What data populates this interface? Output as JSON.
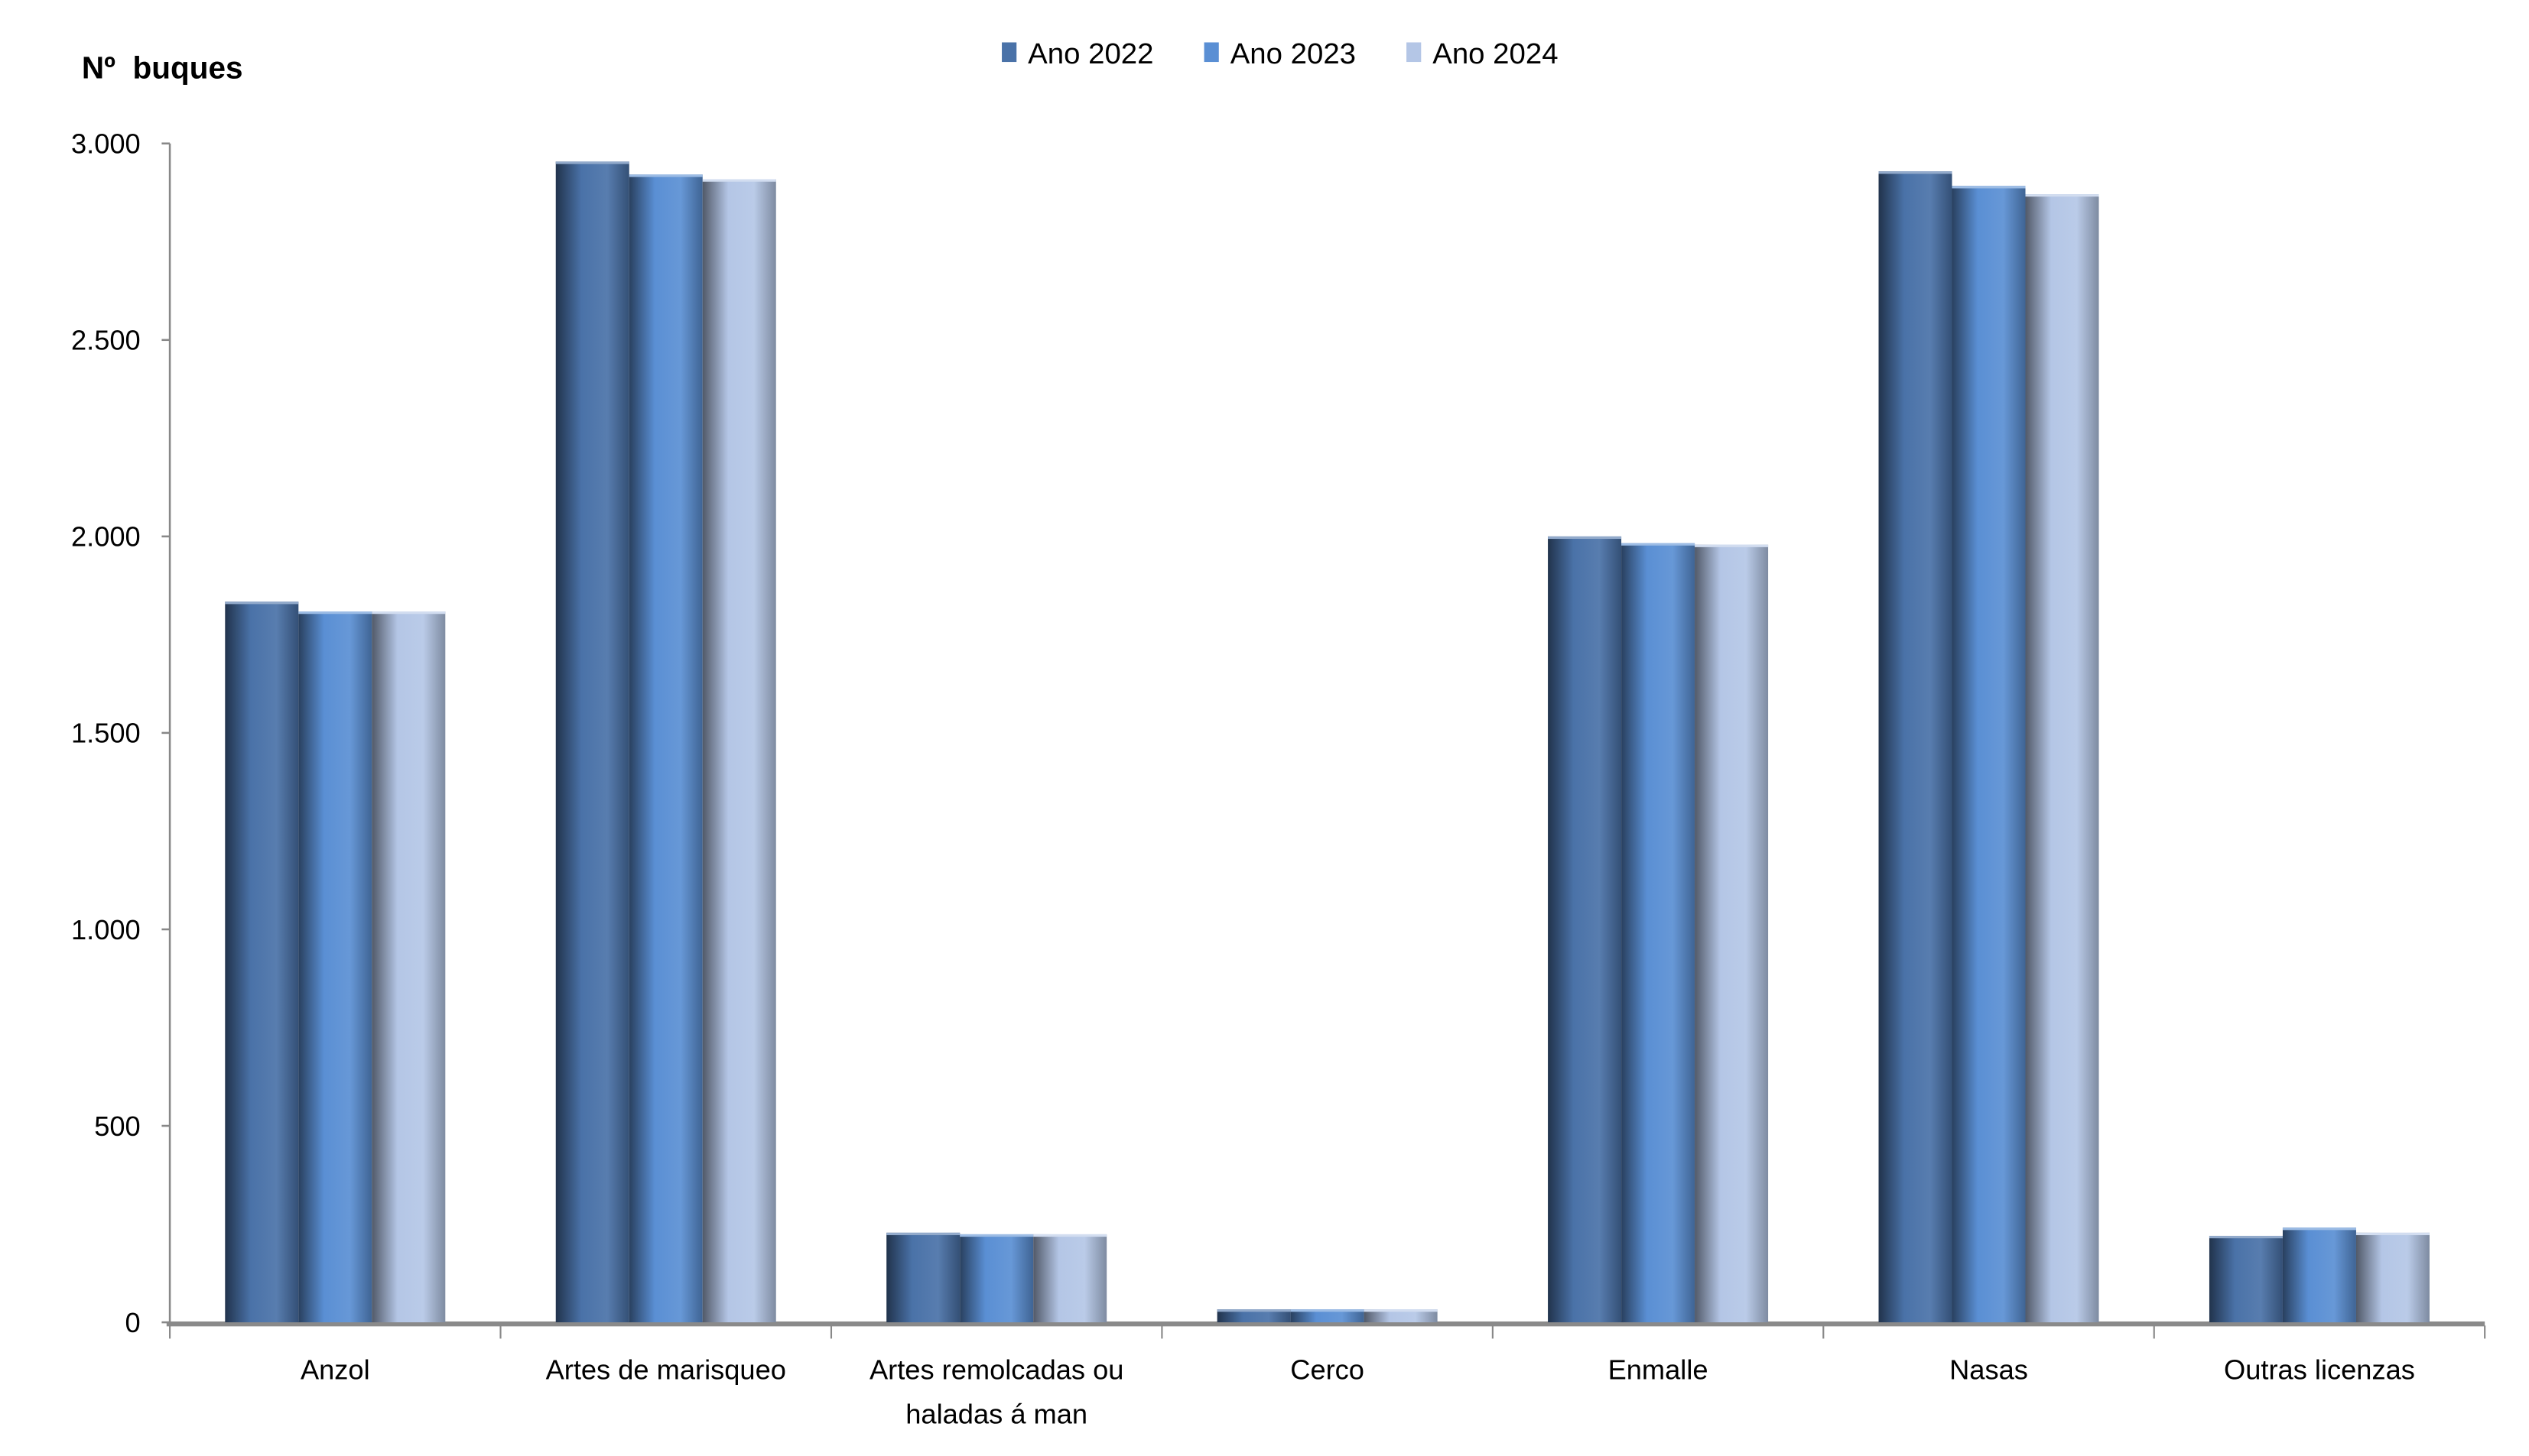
{
  "chart_data": {
    "type": "bar",
    "ylabel": "Nº  buques",
    "xlabel": "",
    "title": "",
    "ylim": [
      0,
      3000
    ],
    "yticks": [
      0,
      500,
      1000,
      1500,
      2000,
      2500,
      3000
    ],
    "ytick_labels": [
      "0",
      "500",
      "1.000",
      "1.500",
      "2.000",
      "2.500",
      "3.000"
    ],
    "grid": false,
    "legend_position": "top-center",
    "categories": [
      [
        "Anzol"
      ],
      [
        "Artes de marisqueo"
      ],
      [
        "Artes remolcadas ou",
        "haladas á man"
      ],
      [
        "Cerco"
      ],
      [
        "Enmalle"
      ],
      [
        "Nasas"
      ],
      [
        "Outras licenzas"
      ]
    ],
    "series": [
      {
        "name": "Ano 2022",
        "color": "#4a72a8",
        "values": [
          1834,
          2954,
          228,
          33,
          2000,
          2929,
          220
        ]
      },
      {
        "name": "Ano 2023",
        "color": "#5a8fd4",
        "values": [
          1809,
          2921,
          224,
          33,
          1983,
          2892,
          241
        ]
      },
      {
        "name": "Ano 2024",
        "color": "#b4c6e6",
        "values": [
          1809,
          2909,
          224,
          33,
          1979,
          2871,
          228
        ]
      }
    ]
  }
}
